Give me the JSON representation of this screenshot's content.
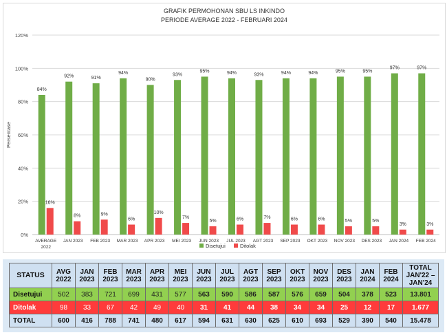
{
  "chart_data": {
    "type": "bar",
    "title": "GRAFIK PERMOHONAN SBU LS INKINDO",
    "subtitle": "PERIODE AVERAGE 2022 - FEBRUARI 2024",
    "ylabel": "Persentase",
    "ylim": [
      0,
      120
    ],
    "yticks": [
      "0%",
      "20%",
      "40%",
      "60%",
      "80%",
      "100%",
      "120%"
    ],
    "grid": true,
    "legend": "bottom",
    "categories": [
      [
        "AVERAGE",
        "2022"
      ],
      [
        "JAN 2023"
      ],
      [
        "FEB 2023"
      ],
      [
        "MAR 2023"
      ],
      [
        "APR 2023"
      ],
      [
        "MEI 2023"
      ],
      [
        "JUN 2023"
      ],
      [
        "JUL 2023"
      ],
      [
        "AGT 2023"
      ],
      [
        "SEP 2023"
      ],
      [
        "OKT 2023"
      ],
      [
        "NOV 2023"
      ],
      [
        "DES 2023"
      ],
      [
        "JAN 2024"
      ],
      [
        "FEB 2024"
      ]
    ],
    "series": [
      {
        "name": "Disetujui",
        "color": "#70ad47",
        "values": [
          84,
          92,
          91,
          94,
          90,
          93,
          95,
          94,
          93,
          94,
          94,
          95,
          95,
          97,
          97
        ]
      },
      {
        "name": "Ditolak",
        "color": "#f04a4a",
        "values": [
          16,
          8,
          9,
          6,
          10,
          7,
          5,
          6,
          7,
          6,
          6,
          5,
          5,
          3,
          3
        ]
      }
    ]
  },
  "table": {
    "headers": [
      [
        "STATUS"
      ],
      [
        "AVG",
        "2022"
      ],
      [
        "JAN",
        "2023"
      ],
      [
        "FEB",
        "2023"
      ],
      [
        "MAR",
        "2023"
      ],
      [
        "APR",
        "2023"
      ],
      [
        "MEI",
        "2023"
      ],
      [
        "JUN",
        "2023"
      ],
      [
        "JUL",
        "2023"
      ],
      [
        "AGT",
        "2023"
      ],
      [
        "SEP",
        "2023"
      ],
      [
        "OKT",
        "2023"
      ],
      [
        "NOV",
        "2023"
      ],
      [
        "DES",
        "2023"
      ],
      [
        "JAN",
        "2024"
      ],
      [
        "FEB",
        "2024"
      ],
      [
        "TOTAL",
        "JAN'22 –",
        "JAN'24"
      ]
    ],
    "rows": [
      {
        "label": "Disetujui",
        "values": [
          "502",
          "383",
          "721",
          "699",
          "431",
          "577",
          "563",
          "590",
          "586",
          "587",
          "576",
          "659",
          "504",
          "378",
          "523",
          "13.801"
        ]
      },
      {
        "label": "Ditolak",
        "values": [
          "98",
          "33",
          "67",
          "42",
          "49",
          "40",
          "31",
          "41",
          "44",
          "38",
          "34",
          "34",
          "25",
          "12",
          "17",
          "1.677"
        ]
      },
      {
        "label": "TOTAL",
        "values": [
          "600",
          "416",
          "788",
          "741",
          "480",
          "617",
          "594",
          "631",
          "630",
          "625",
          "610",
          "693",
          "529",
          "390",
          "540",
          "15.478"
        ]
      }
    ]
  }
}
